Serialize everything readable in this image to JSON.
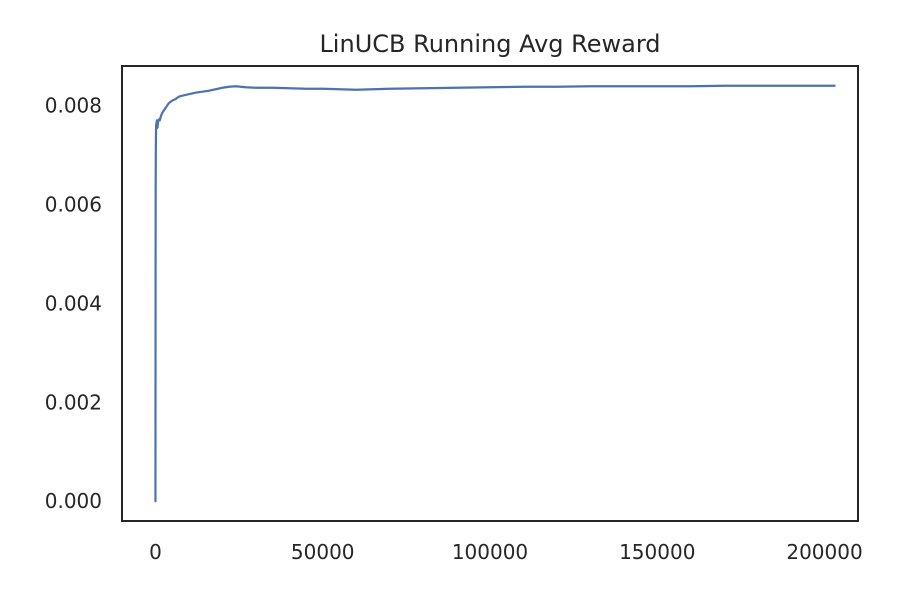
{
  "chart_data": {
    "type": "line",
    "title": "LinUCB Running Avg Reward",
    "xlabel": "",
    "ylabel": "",
    "xlim": [
      -10000,
      210000
    ],
    "ylim": [
      -0.0004,
      0.0088
    ],
    "x_ticks": [
      0,
      50000,
      100000,
      150000,
      200000
    ],
    "x_tick_labels": [
      "0",
      "50000",
      "100000",
      "150000",
      "200000"
    ],
    "y_ticks": [
      0.0,
      0.002,
      0.004,
      0.006,
      0.008
    ],
    "y_tick_labels": [
      "0.000",
      "0.002",
      "0.004",
      "0.006",
      "0.008"
    ],
    "grid": false,
    "legend": "none",
    "series": [
      {
        "color": "#4c72b0",
        "points": [
          [
            0,
            0.0
          ],
          [
            30,
            0.004
          ],
          [
            60,
            0.0062
          ],
          [
            100,
            0.007
          ],
          [
            150,
            0.0074
          ],
          [
            200,
            0.0076
          ],
          [
            300,
            0.00765
          ],
          [
            450,
            0.0077
          ],
          [
            600,
            0.00755
          ],
          [
            800,
            0.00768
          ],
          [
            1000,
            0.00772
          ],
          [
            1300,
            0.0077
          ],
          [
            1600,
            0.00778
          ],
          [
            2000,
            0.00785
          ],
          [
            2500,
            0.0079
          ],
          [
            3000,
            0.00795
          ],
          [
            3500,
            0.008
          ],
          [
            4000,
            0.00805
          ],
          [
            5000,
            0.0081
          ],
          [
            6000,
            0.00813
          ],
          [
            7000,
            0.00818
          ],
          [
            8000,
            0.0082
          ],
          [
            10000,
            0.00823
          ],
          [
            12000,
            0.00826
          ],
          [
            14000,
            0.00828
          ],
          [
            16000,
            0.0083
          ],
          [
            18000,
            0.00833
          ],
          [
            20000,
            0.00836
          ],
          [
            22000,
            0.00838
          ],
          [
            24000,
            0.00839
          ],
          [
            27000,
            0.00837
          ],
          [
            30000,
            0.00836
          ],
          [
            35000,
            0.00836
          ],
          [
            40000,
            0.00835
          ],
          [
            45000,
            0.00834
          ],
          [
            50000,
            0.00834
          ],
          [
            55000,
            0.00833
          ],
          [
            60000,
            0.00832
          ],
          [
            65000,
            0.00833
          ],
          [
            70000,
            0.00834
          ],
          [
            80000,
            0.00835
          ],
          [
            90000,
            0.00836
          ],
          [
            100000,
            0.00837
          ],
          [
            110000,
            0.00838
          ],
          [
            120000,
            0.00838
          ],
          [
            130000,
            0.00839
          ],
          [
            140000,
            0.00839
          ],
          [
            150000,
            0.00839
          ],
          [
            160000,
            0.00839
          ],
          [
            170000,
            0.0084
          ],
          [
            180000,
            0.0084
          ],
          [
            190000,
            0.0084
          ],
          [
            200000,
            0.0084
          ],
          [
            203000,
            0.0084
          ]
        ]
      }
    ]
  }
}
